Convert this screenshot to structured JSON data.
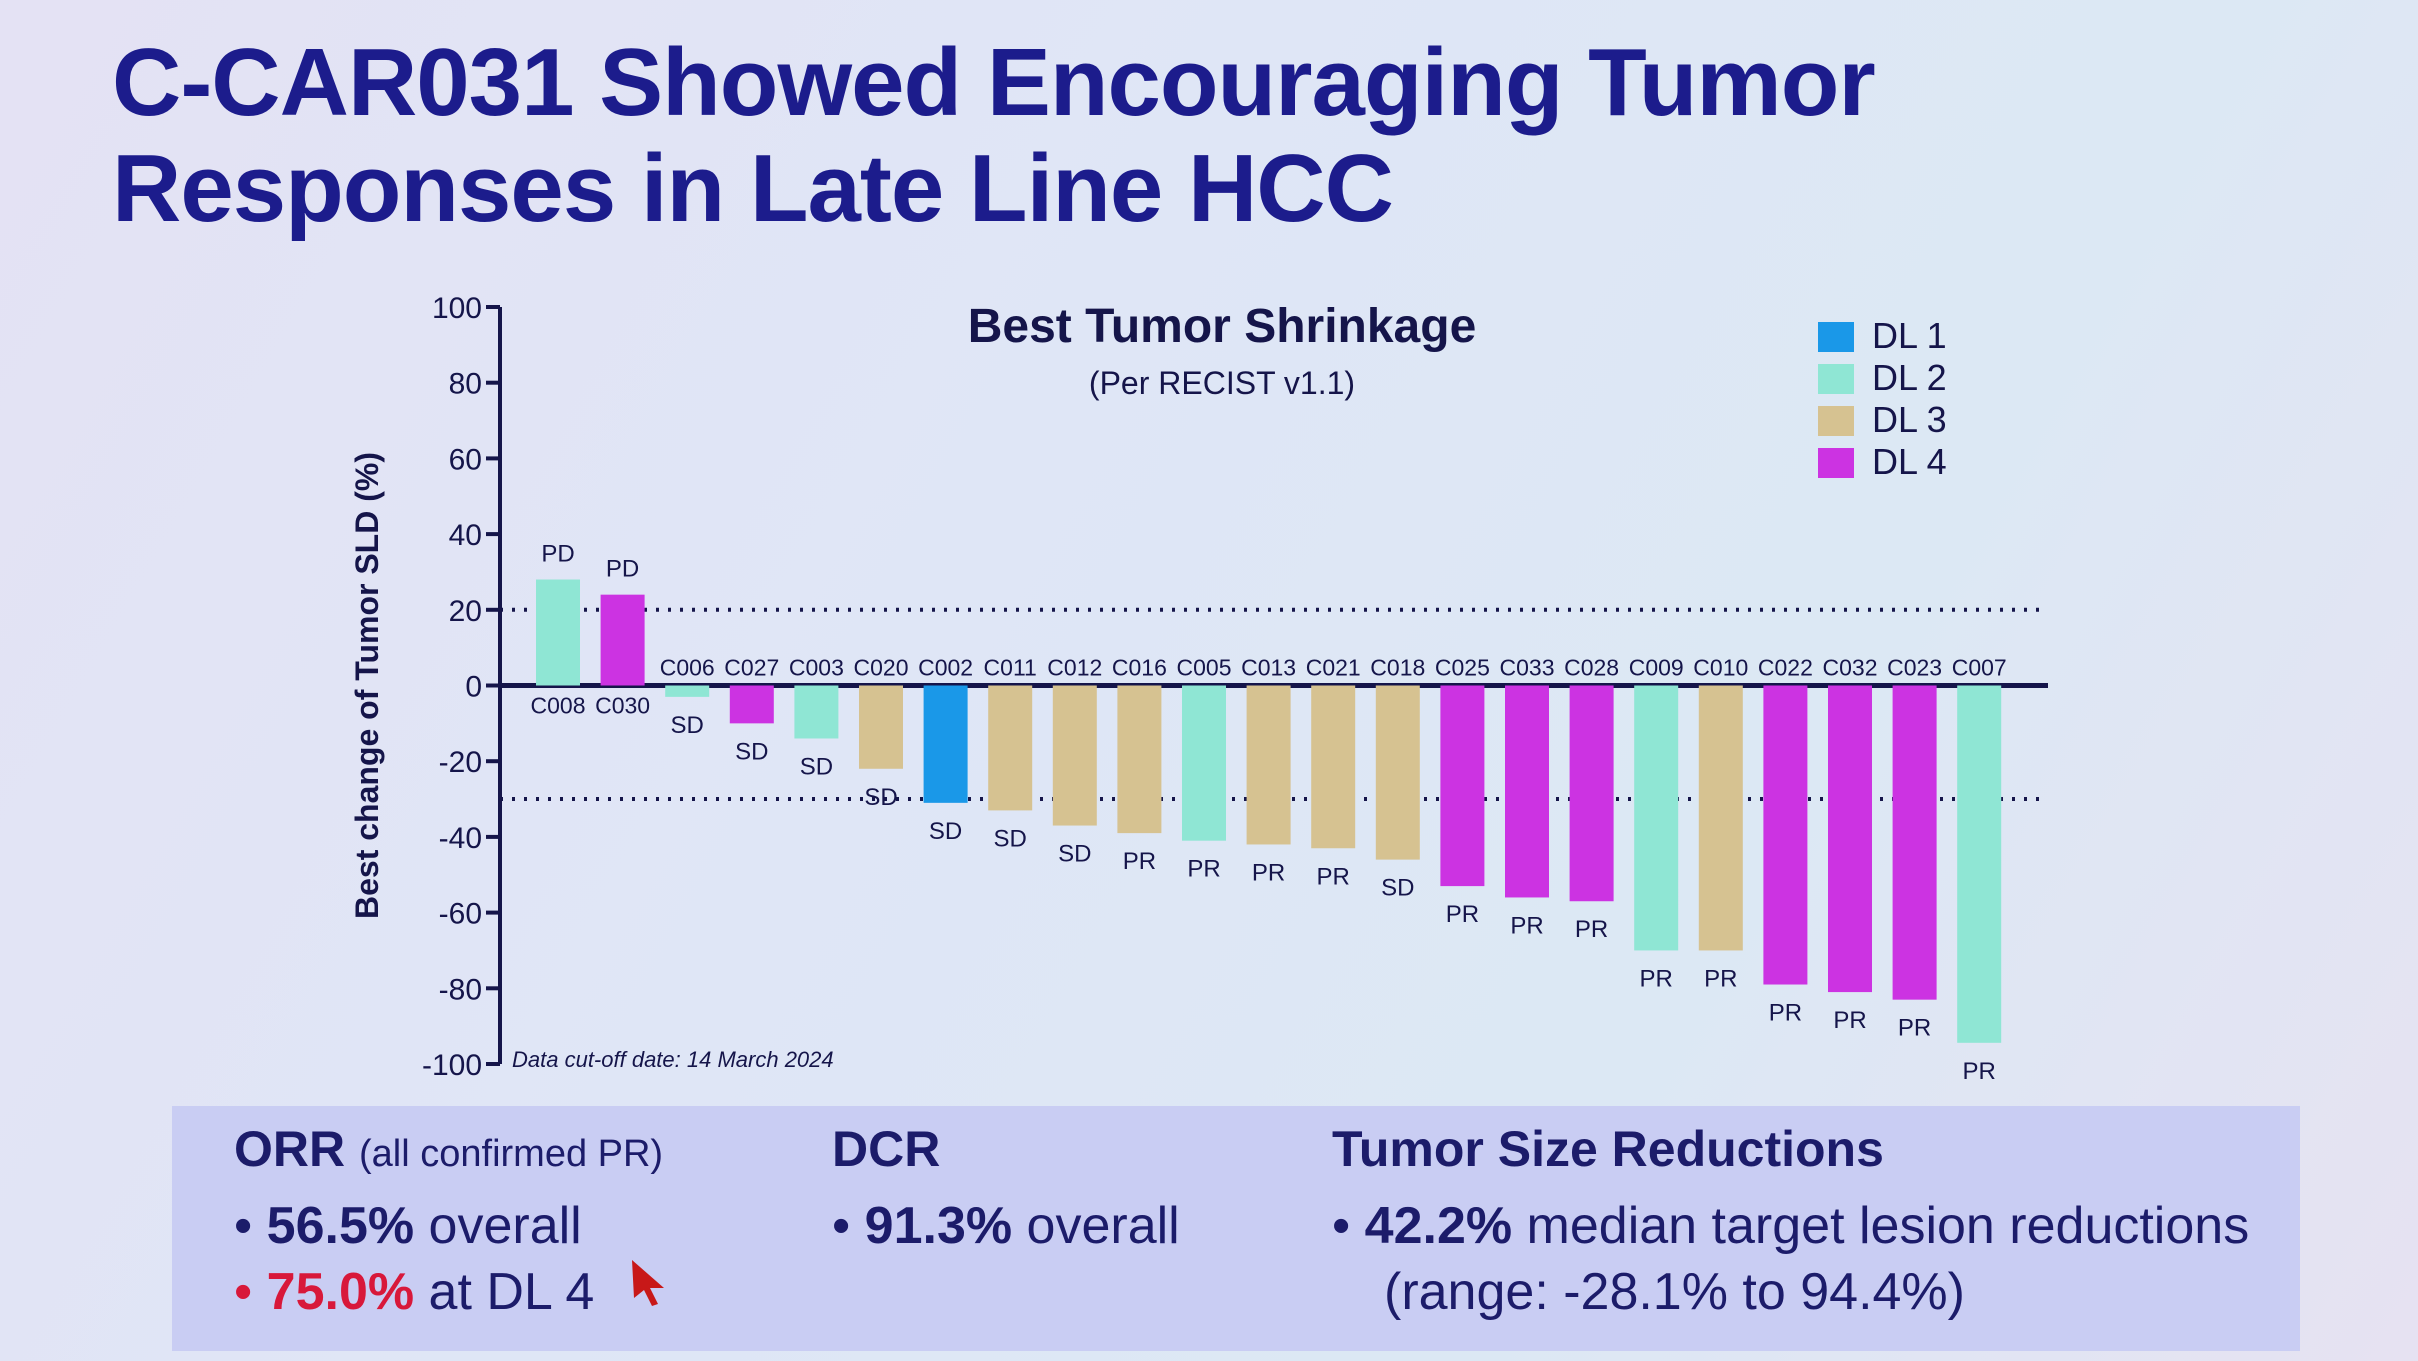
{
  "title_line1": "C-CAR031 Showed Encouraging Tumor",
  "title_line2": "Responses in Late Line HCC",
  "chart_data": {
    "type": "bar",
    "title": "Best Tumor Shrinkage",
    "subtitle": "(Per RECIST v1.1)",
    "ylabel": "Best change of Tumor SLD (%)",
    "xlabel": "",
    "ylim": [
      -100,
      100
    ],
    "yticks": [
      100,
      80,
      60,
      40,
      20,
      0,
      -20,
      -40,
      -60,
      -80,
      -100
    ],
    "reference_lines": [
      20,
      -30
    ],
    "footnote": "Data cut-off date: 14 March 2024",
    "legend_position": "top-right",
    "legend": [
      {
        "name": "DL 1",
        "color": "#1a98e8"
      },
      {
        "name": "DL 2",
        "color": "#8fe6d4"
      },
      {
        "name": "DL 3",
        "color": "#d6c291"
      },
      {
        "name": "DL 4",
        "color": "#cc33e2"
      }
    ],
    "categories": [
      "C008",
      "C030",
      "C006",
      "C027",
      "C003",
      "C020",
      "C002",
      "C011",
      "C012",
      "C016",
      "C005",
      "C013",
      "C021",
      "C018",
      "C025",
      "C033",
      "C028",
      "C009",
      "C010",
      "C022",
      "C032",
      "C023",
      "C007"
    ],
    "values": [
      28,
      24,
      -3,
      -10,
      -14,
      -22,
      -31,
      -33,
      -37,
      -39,
      -41,
      -42,
      -43,
      -46,
      -53,
      -56,
      -57,
      -70,
      -70,
      -79,
      -81,
      -83,
      -94.4
    ],
    "dose_levels": [
      2,
      4,
      2,
      4,
      2,
      3,
      1,
      3,
      3,
      3,
      2,
      3,
      3,
      3,
      4,
      4,
      4,
      2,
      3,
      4,
      4,
      4,
      2
    ],
    "responses": [
      "PD",
      "PD",
      "SD",
      "SD",
      "SD",
      "SD",
      "SD",
      "SD",
      "SD",
      "PR",
      "PR",
      "PR",
      "PR",
      "SD",
      "PR",
      "PR",
      "PR",
      "PR",
      "PR",
      "PR",
      "PR",
      "PR",
      "PR"
    ]
  },
  "summary": {
    "orr": {
      "heading": "ORR",
      "note": "(all confirmed PR)",
      "items": [
        {
          "value": "56.5%",
          "text": " overall"
        },
        {
          "value": "75.0%",
          "text": " at DL 4"
        }
      ]
    },
    "dcr": {
      "heading": "DCR",
      "items": [
        {
          "value": "91.3%",
          "text": " overall"
        }
      ]
    },
    "tsr": {
      "heading": "Tumor Size Reductions",
      "items": [
        {
          "value": "42.2%",
          "text": " median target lesion reductions"
        }
      ],
      "range": "(range: -28.1% to 94.4%)"
    }
  }
}
